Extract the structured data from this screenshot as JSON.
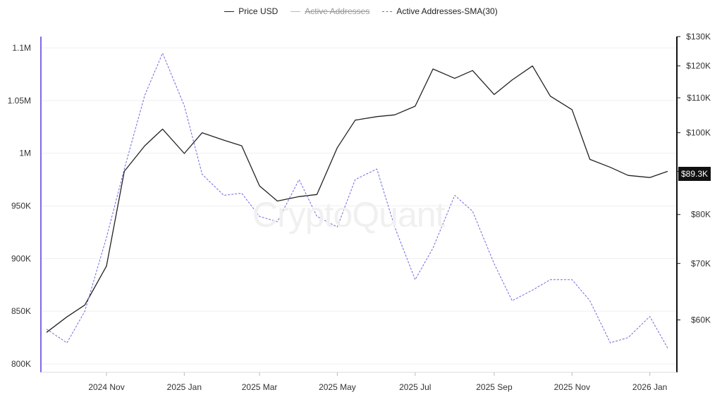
{
  "legend": {
    "price_label": "Price USD",
    "active_label": "Active Addresses",
    "sma_label": "Active Addresses-SMA(30)"
  },
  "watermark": "CryptoQuant",
  "price_tag": "$89.3K",
  "colors": {
    "price": "#222222",
    "sma": "#6b6be0",
    "left_axis": "#7b6be8",
    "grid": "#efefef"
  },
  "chart_data": {
    "type": "line",
    "x_ticks": [
      "2024 Nov",
      "2025 Jan",
      "2025 Mar",
      "2025 May",
      "2025 Jul",
      "2025 Sep",
      "2025 Nov",
      "2026 Jan"
    ],
    "left_axis": {
      "ticks": [
        "1.1M",
        "1.05M",
        "1M",
        "950K",
        "900K",
        "850K",
        "800K"
      ],
      "ylim": [
        800000,
        1100000
      ]
    },
    "right_axis": {
      "scale": "log",
      "ticks": [
        "$130K",
        "$120K",
        "$110K",
        "$100K",
        "$90K",
        "$80K",
        "$70K",
        "$60K"
      ],
      "ylim": [
        52000,
        130000
      ]
    },
    "grid": true,
    "legend_position": "top-center",
    "x": [
      "2024-09-15",
      "2024-10-01",
      "2024-10-15",
      "2024-11-01",
      "2024-11-15",
      "2024-12-01",
      "2024-12-15",
      "2025-01-01",
      "2025-01-15",
      "2025-02-01",
      "2025-02-15",
      "2025-03-01",
      "2025-03-15",
      "2025-04-01",
      "2025-04-15",
      "2025-05-01",
      "2025-05-15",
      "2025-06-01",
      "2025-06-15",
      "2025-07-01",
      "2025-07-15",
      "2025-08-01",
      "2025-08-15",
      "2025-09-01",
      "2025-09-15",
      "2025-10-01",
      "2025-10-15",
      "2025-11-01",
      "2025-11-15",
      "2025-12-01",
      "2025-12-15",
      "2026-01-01",
      "2026-01-15"
    ],
    "series": [
      {
        "name": "Price USD",
        "axis": "right",
        "values": [
          58000,
          60500,
          62500,
          69500,
          90000,
          96500,
          101000,
          94500,
          100000,
          98000,
          96500,
          86500,
          83000,
          84000,
          84500,
          96000,
          103500,
          104500,
          105000,
          107500,
          119000,
          116000,
          118500,
          111000,
          115500,
          120000,
          110500,
          106500,
          93000,
          91000,
          89000,
          88500,
          90000
        ]
      },
      {
        "name": "Active Addresses-SMA(30)",
        "axis": "left",
        "values": [
          833000,
          820000,
          850000,
          920000,
          985000,
          1055000,
          1095000,
          1045000,
          980000,
          960000,
          962000,
          940000,
          935000,
          975000,
          940000,
          930000,
          975000,
          985000,
          930000,
          880000,
          910000,
          960000,
          945000,
          895000,
          860000,
          870000,
          880000,
          880000,
          860000,
          820000,
          825000,
          845000,
          815000
        ]
      }
    ]
  }
}
